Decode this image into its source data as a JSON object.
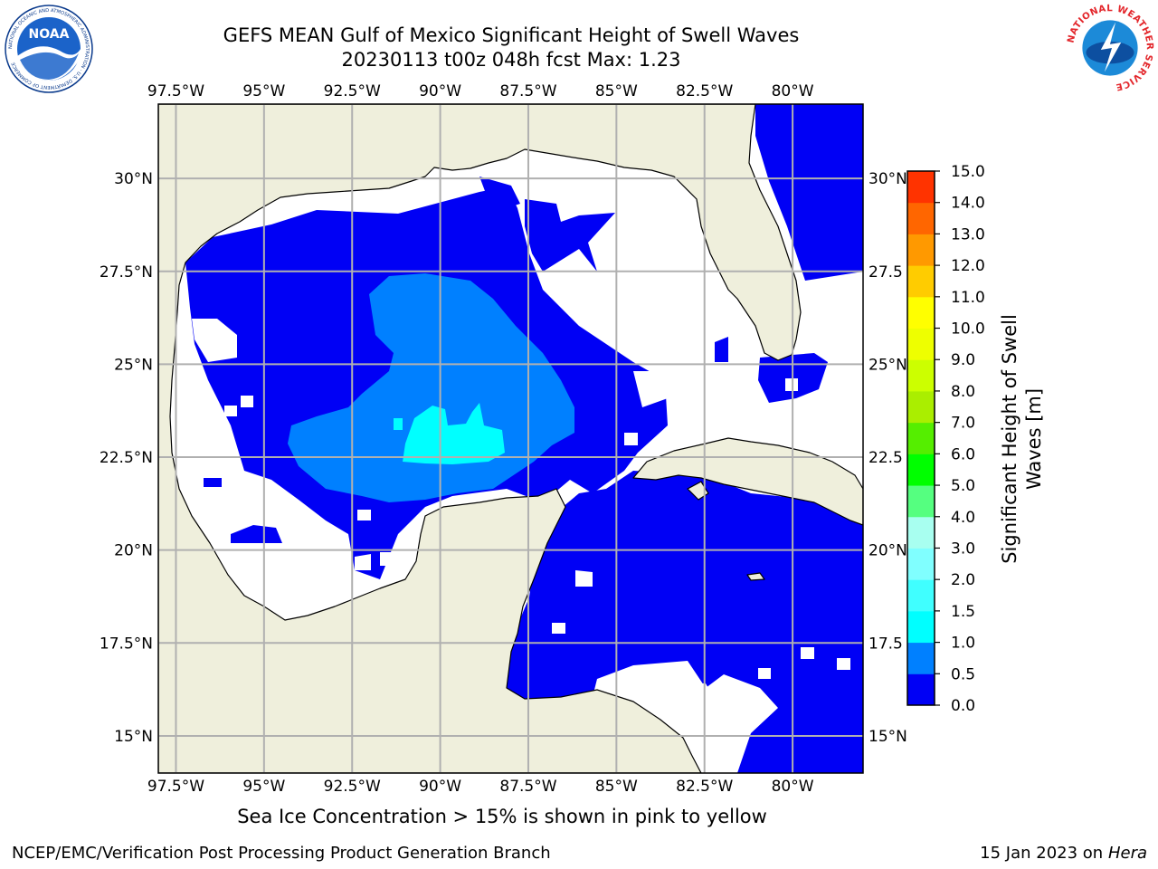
{
  "title": {
    "line1": "GEFS MEAN Gulf of Mexico Significant Height of Swell Waves",
    "line2": "20230113 t00z 048h fcst   Max: 1.23"
  },
  "map": {
    "lon_ticks": [
      "97.5°W",
      "95°W",
      "92.5°W",
      "90°W",
      "87.5°W",
      "85°W",
      "82.5°W",
      "80°W"
    ],
    "lat_ticks_left": [
      "30°N",
      "27.5°N",
      "25°N",
      "22.5°N",
      "20°N",
      "17.5°N",
      "15°N"
    ],
    "lat_ticks_right": [
      "30°N",
      "27.5",
      "25°N",
      "22.5",
      "20°N",
      "17.5",
      "15°N"
    ],
    "lon_range": [
      -98,
      -78
    ],
    "lat_range": [
      14,
      32
    ]
  },
  "colorbar": {
    "label_line1": "Significant Height of Swell",
    "label_line2": "Waves [m]",
    "ticks": [
      "0.0",
      "0.5",
      "1.0",
      "1.5",
      "2.0",
      "3.0",
      "4.0",
      "5.0",
      "6.0",
      "7.0",
      "8.0",
      "9.0",
      "10.0",
      "11.0",
      "12.0",
      "13.0",
      "14.0",
      "15.0"
    ],
    "colors": [
      "#0000f5",
      "#0080ff",
      "#00ffff",
      "#40ffff",
      "#80ffff",
      "#a8fff0",
      "#55ff80",
      "#00ff00",
      "#55ee00",
      "#aaee00",
      "#ccff00",
      "#eeff00",
      "#ffff00",
      "#ffcc00",
      "#ff9900",
      "#ff6600",
      "#ff3300",
      "#ff0000"
    ]
  },
  "colors": {
    "land": "#efefdc",
    "grid": "#b0b0b0",
    "ocean_no_data": "#ffffff"
  },
  "logos": {
    "noaa_text": "NOAA",
    "noaa_ring": "NATIONAL OCEANIC AND ATMOSPHERIC ADMINISTRATION · U.S. DEPARTMENT OF COMMERCE",
    "nws_ring": "NATIONAL WEATHER SERVICE"
  },
  "bottom_note": "Sea Ice Concentration > 15% is shown in pink to yellow",
  "footer": {
    "left": "NCEP/EMC/Verification Post Processing Product Generation Branch",
    "right_date": "15 Jan 2023 on ",
    "right_host": "Hera"
  }
}
